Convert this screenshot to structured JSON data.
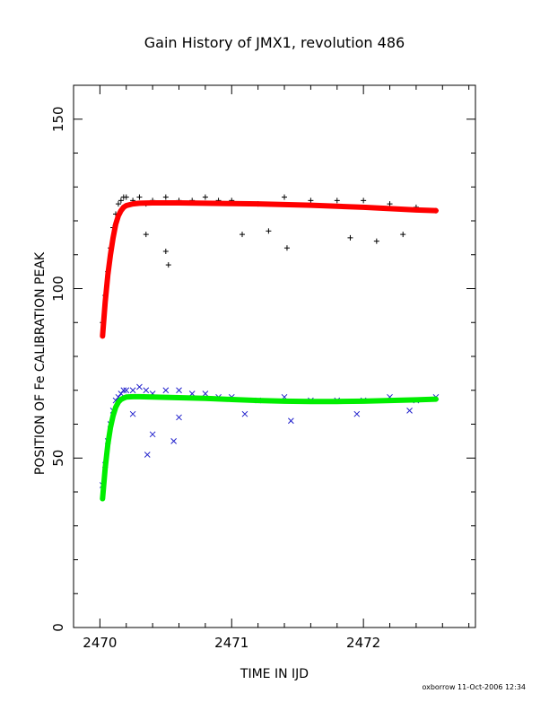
{
  "chart_data": {
    "type": "scatter",
    "title": "Gain History of JMX1, revolution 486",
    "xlabel": "TIME IN IJD",
    "ylabel": "POSITION OF Fe CALIBRATION PEAK",
    "xlim": [
      2469.8,
      2472.85
    ],
    "ylim": [
      0,
      160
    ],
    "x_ticks": [
      2470,
      2471,
      2472
    ],
    "x_tick_labels": [
      "2470",
      "2471",
      "2472"
    ],
    "y_ticks": [
      0,
      50,
      100,
      150
    ],
    "y_tick_labels": [
      "0",
      "50",
      "100",
      "150"
    ],
    "grid": false,
    "legend": "none",
    "footer": "oxborrow 11-Oct-2006 12:34",
    "series": [
      {
        "marker": "+",
        "color": "#000000",
        "x": [
          2470.02,
          2470.04,
          2470.06,
          2470.08,
          2470.1,
          2470.12,
          2470.14,
          2470.16,
          2470.18,
          2470.2,
          2470.25,
          2470.3,
          2470.35,
          2470.4,
          2470.5,
          2470.6,
          2470.7,
          2470.8,
          2470.9,
          2471.0,
          2471.2,
          2471.4,
          2471.6,
          2471.8,
          2472.0,
          2472.2,
          2472.4,
          2472.55,
          2470.35,
          2470.5,
          2470.52,
          2471.08,
          2471.28,
          2471.42,
          2471.9,
          2472.1,
          2472.3
        ],
        "y": [
          90,
          98,
          105,
          112,
          118,
          122,
          125,
          126,
          127,
          127,
          126,
          127,
          125,
          126,
          127,
          126,
          126,
          127,
          126,
          126,
          125,
          127,
          126,
          126,
          126,
          125,
          124,
          123,
          116,
          111,
          107,
          116,
          117,
          112,
          115,
          114,
          116
        ]
      },
      {
        "marker": "curve",
        "color": "#ff0000",
        "x": [
          2470.02,
          2470.04,
          2470.06,
          2470.08,
          2470.1,
          2470.12,
          2470.14,
          2470.16,
          2470.18,
          2470.2,
          2470.25,
          2470.3,
          2470.4,
          2470.6,
          2470.8,
          2471.0,
          2471.2,
          2471.4,
          2471.6,
          2471.8,
          2472.0,
          2472.2,
          2472.4,
          2472.55
        ],
        "y": [
          86,
          96,
          104,
          110,
          115,
          119,
          121.5,
          123,
          124,
          124.5,
          125,
          125.2,
          125.3,
          125.3,
          125.2,
          125.1,
          125,
          124.8,
          124.6,
          124.3,
          124,
          123.6,
          123.2,
          123
        ]
      },
      {
        "marker": "x",
        "color": "#2222cc",
        "x": [
          2470.02,
          2470.04,
          2470.06,
          2470.08,
          2470.1,
          2470.12,
          2470.14,
          2470.16,
          2470.18,
          2470.2,
          2470.25,
          2470.3,
          2470.35,
          2470.4,
          2470.5,
          2470.6,
          2470.7,
          2470.8,
          2470.9,
          2471.0,
          2471.2,
          2471.4,
          2471.6,
          2471.8,
          2472.0,
          2472.2,
          2472.4,
          2472.55,
          2470.25,
          2470.36,
          2470.4,
          2470.56,
          2470.6,
          2471.1,
          2471.45,
          2471.95,
          2472.35
        ],
        "y": [
          42,
          48,
          55,
          60,
          64,
          67,
          68,
          69,
          70,
          70,
          70,
          71,
          70,
          69,
          70,
          70,
          69,
          69,
          68,
          68,
          67,
          68,
          67,
          67,
          67,
          68,
          67,
          68,
          63,
          51,
          57,
          55,
          62,
          63,
          61,
          63,
          64
        ]
      },
      {
        "marker": "curve",
        "color": "#00ee00",
        "x": [
          2470.02,
          2470.04,
          2470.06,
          2470.08,
          2470.1,
          2470.12,
          2470.14,
          2470.16,
          2470.18,
          2470.2,
          2470.25,
          2470.3,
          2470.4,
          2470.6,
          2470.8,
          2471.0,
          2471.2,
          2471.4,
          2471.6,
          2471.8,
          2472.0,
          2472.2,
          2472.4,
          2472.55
        ],
        "y": [
          38,
          47,
          54,
          59,
          62.5,
          65,
          66.5,
          67.3,
          67.7,
          68,
          68.1,
          68.1,
          68,
          67.8,
          67.6,
          67.3,
          67,
          66.8,
          66.7,
          66.7,
          66.8,
          67,
          67.2,
          67.4
        ]
      }
    ]
  }
}
